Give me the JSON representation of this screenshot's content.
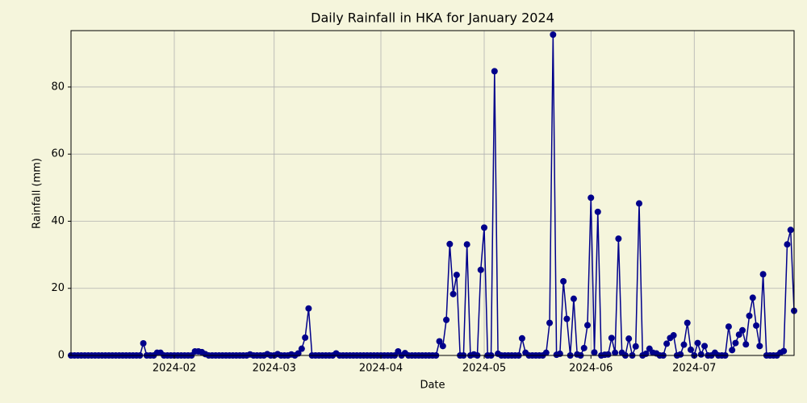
{
  "chart_data": {
    "type": "line",
    "title": "Daily Rainfall in HKA for January 2024",
    "xlabel": "Date",
    "ylabel": "Rainfall (mm)",
    "color": "#00008b",
    "marker": "o",
    "grid": true,
    "x": [
      "2024-01-02",
      "2024-01-03",
      "2024-01-04",
      "2024-01-05",
      "2024-01-06",
      "2024-01-07",
      "2024-01-08",
      "2024-01-09",
      "2024-01-10",
      "2024-01-11",
      "2024-01-12",
      "2024-01-13",
      "2024-01-14",
      "2024-01-15",
      "2024-01-16",
      "2024-01-17",
      "2024-01-18",
      "2024-01-19",
      "2024-01-20",
      "2024-01-21",
      "2024-01-22",
      "2024-01-23",
      "2024-01-24",
      "2024-01-25",
      "2024-01-26",
      "2024-01-27",
      "2024-01-28",
      "2024-01-29",
      "2024-01-30",
      "2024-01-31",
      "2024-02-01",
      "2024-02-02",
      "2024-02-03",
      "2024-02-04",
      "2024-02-05",
      "2024-02-06",
      "2024-02-07",
      "2024-02-08",
      "2024-02-09",
      "2024-02-10",
      "2024-02-11",
      "2024-02-12",
      "2024-02-13",
      "2024-02-14",
      "2024-02-15",
      "2024-02-16",
      "2024-02-17",
      "2024-02-18",
      "2024-02-19",
      "2024-02-20",
      "2024-02-21",
      "2024-02-22",
      "2024-02-23",
      "2024-02-24",
      "2024-02-25",
      "2024-02-26",
      "2024-02-27",
      "2024-02-28",
      "2024-02-29",
      "2024-03-01",
      "2024-03-02",
      "2024-03-03",
      "2024-03-04",
      "2024-03-05",
      "2024-03-06",
      "2024-03-07",
      "2024-03-08",
      "2024-03-09",
      "2024-03-10",
      "2024-03-11",
      "2024-03-12",
      "2024-03-13",
      "2024-03-14",
      "2024-03-15",
      "2024-03-16",
      "2024-03-17",
      "2024-03-18",
      "2024-03-19",
      "2024-03-20",
      "2024-03-21",
      "2024-03-22",
      "2024-03-23",
      "2024-03-24",
      "2024-03-25",
      "2024-03-26",
      "2024-03-27",
      "2024-03-28",
      "2024-03-29",
      "2024-03-30",
      "2024-03-31",
      "2024-04-01",
      "2024-04-02",
      "2024-04-03",
      "2024-04-04",
      "2024-04-05",
      "2024-04-06",
      "2024-04-07",
      "2024-04-08",
      "2024-04-09",
      "2024-04-10",
      "2024-04-11",
      "2024-04-12",
      "2024-04-13",
      "2024-04-14",
      "2024-04-15",
      "2024-04-16",
      "2024-04-17",
      "2024-04-18",
      "2024-04-19",
      "2024-04-20",
      "2024-04-21",
      "2024-04-22",
      "2024-04-23",
      "2024-04-24",
      "2024-04-25",
      "2024-04-26",
      "2024-04-27",
      "2024-04-28",
      "2024-04-29",
      "2024-04-30",
      "2024-05-01",
      "2024-05-02",
      "2024-05-03",
      "2024-05-04",
      "2024-05-05",
      "2024-05-06",
      "2024-05-07",
      "2024-05-08",
      "2024-05-09",
      "2024-05-10",
      "2024-05-11",
      "2024-05-12",
      "2024-05-13",
      "2024-05-14",
      "2024-05-15",
      "2024-05-16",
      "2024-05-17",
      "2024-05-18",
      "2024-05-19",
      "2024-05-20",
      "2024-05-21",
      "2024-05-22",
      "2024-05-23",
      "2024-05-24",
      "2024-05-25",
      "2024-05-26",
      "2024-05-27",
      "2024-05-28",
      "2024-05-29",
      "2024-05-30",
      "2024-05-31",
      "2024-06-01",
      "2024-06-02",
      "2024-06-03",
      "2024-06-04",
      "2024-06-05",
      "2024-06-06",
      "2024-06-07",
      "2024-06-08",
      "2024-06-09",
      "2024-06-10",
      "2024-06-11",
      "2024-06-12",
      "2024-06-13",
      "2024-06-14",
      "2024-06-15",
      "2024-06-16",
      "2024-06-17",
      "2024-06-18",
      "2024-06-19",
      "2024-06-20",
      "2024-06-21",
      "2024-06-22",
      "2024-06-23",
      "2024-06-24",
      "2024-06-25",
      "2024-06-26",
      "2024-06-27",
      "2024-06-28",
      "2024-06-29",
      "2024-06-30",
      "2024-07-01",
      "2024-07-02",
      "2024-07-03",
      "2024-07-04",
      "2024-07-05",
      "2024-07-06",
      "2024-07-07",
      "2024-07-08",
      "2024-07-09",
      "2024-07-10",
      "2024-07-11",
      "2024-07-12",
      "2024-07-13",
      "2024-07-14",
      "2024-07-15",
      "2024-07-16",
      "2024-07-17",
      "2024-07-18",
      "2024-07-19",
      "2024-07-20",
      "2024-07-21",
      "2024-07-22",
      "2024-07-23",
      "2024-07-24",
      "2024-07-25",
      "2024-07-26",
      "2024-07-27",
      "2024-07-28",
      "2024-07-29",
      "2024-07-30"
    ],
    "values": [
      0,
      0,
      0,
      0,
      0,
      0,
      0,
      0,
      0,
      0,
      0,
      0,
      0,
      0,
      0,
      0,
      0,
      0,
      0,
      0,
      0,
      3.6,
      0,
      0,
      0,
      0.8,
      0.8,
      0,
      0,
      0,
      0,
      0,
      0,
      0,
      0,
      0,
      1.2,
      1.2,
      1.0,
      0.4,
      0,
      0,
      0,
      0,
      0,
      0,
      0,
      0,
      0,
      0,
      0,
      0,
      0.3,
      0,
      0,
      0,
      0,
      0.4,
      0,
      0,
      0.4,
      0,
      0,
      0,
      0.3,
      0,
      0.6,
      2.0,
      5.3,
      14.0,
      0,
      0,
      0,
      0,
      0,
      0,
      0,
      0.6,
      0,
      0,
      0,
      0,
      0,
      0,
      0,
      0,
      0,
      0,
      0,
      0,
      0,
      0,
      0,
      0,
      0,
      1.2,
      0,
      0.7,
      0,
      0,
      0,
      0,
      0,
      0,
      0,
      0,
      0,
      4.2,
      2.8,
      10.6,
      33.2,
      18.3,
      24.0,
      0,
      0,
      33.1,
      0,
      0.3,
      0,
      25.5,
      38.1,
      0,
      0,
      84.7,
      0.5,
      0,
      0,
      0,
      0,
      0,
      0,
      5.1,
      0.8,
      0,
      0,
      0,
      0,
      0,
      0.8,
      9.7,
      95.6,
      0.2,
      0.5,
      22.1,
      10.9,
      0,
      16.9,
      0.3,
      0,
      2.2,
      9.0,
      47.0,
      0.9,
      42.8,
      0,
      0.2,
      0.3,
      5.2,
      0.8,
      34.8,
      0.8,
      0,
      5.0,
      0,
      2.7,
      45.3,
      0,
      0.5,
      2.0,
      0.8,
      0.6,
      0,
      0,
      3.5,
      5.2,
      6.0,
      0,
      0.3,
      3.2,
      9.7,
      1.7,
      0,
      3.7,
      0.3,
      2.8,
      0,
      0,
      0.8,
      0,
      0,
      0,
      8.6,
      1.6,
      3.7,
      6.2,
      7.5,
      3.3,
      11.8,
      17.2,
      8.9,
      2.8,
      24.2,
      0,
      0,
      0,
      0,
      0.8,
      1.3,
      33.1,
      37.4,
      13.3
    ],
    "xlim": [
      "2024-01-02",
      "2024-07-30"
    ],
    "xticks": [
      {
        "value": "2024-02-01",
        "label": "2024-02"
      },
      {
        "value": "2024-03-01",
        "label": "2024-03"
      },
      {
        "value": "2024-04-01",
        "label": "2024-04"
      },
      {
        "value": "2024-05-01",
        "label": "2024-05"
      },
      {
        "value": "2024-06-01",
        "label": "2024-06"
      },
      {
        "value": "2024-07-01",
        "label": "2024-07"
      }
    ],
    "ylim": [
      0,
      96.8
    ],
    "yticks": [
      0,
      20,
      40,
      60,
      80
    ]
  }
}
